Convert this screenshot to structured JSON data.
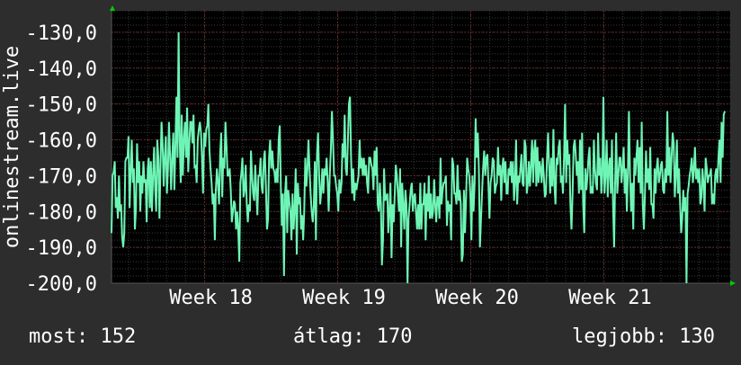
{
  "colors": {
    "background": "#2d2d2d",
    "plot_background": "#000000",
    "grid_major": "#6a2424",
    "grid_minor": "#3a3a3a",
    "line": "#6ef5b5",
    "text": "#ffffff",
    "arrow": "#00cc00"
  },
  "chart_data": {
    "type": "line",
    "title": "",
    "xlabel": "",
    "ylabel": "onlinestream.live",
    "ylim": [
      -200,
      -124
    ],
    "yticks": [
      -200,
      -190,
      -180,
      -170,
      -160,
      -150,
      -140,
      -130
    ],
    "ytick_labels": [
      "-200,0",
      "-190,0",
      "-180,0",
      "-170,0",
      "-160,0",
      "-150,0",
      "-140,0",
      "-130,0"
    ],
    "xlim": [
      17.3,
      21.95
    ],
    "xticks": [
      18,
      19,
      20,
      21
    ],
    "xtick_labels": [
      "Week 18",
      "Week 19",
      "Week 20",
      "Week 21"
    ],
    "grid": true,
    "series": [
      {
        "values": [
          -186,
          -170,
          -169,
          -166,
          -179,
          -176,
          -182,
          -170,
          -180,
          -178,
          -187,
          -190,
          -186,
          -166,
          -165,
          -165,
          -159,
          -179,
          -169,
          -160,
          -172,
          -168,
          -185,
          -179,
          -161,
          -172,
          -166,
          -180,
          -170,
          -175,
          -166,
          -172,
          -171,
          -183,
          -168,
          -165,
          -179,
          -166,
          -180,
          -170,
          -162,
          -173,
          -180,
          -160,
          -165,
          -182,
          -167,
          -155,
          -161,
          -173,
          -165,
          -159,
          -175,
          -168,
          -155,
          -164,
          -174,
          -165,
          -158,
          -174,
          -162,
          -148,
          -165,
          -130,
          -160,
          -172,
          -153,
          -170,
          -160,
          -155,
          -165,
          -151,
          -169,
          -162,
          -155,
          -155,
          -161,
          -153,
          -168,
          -167,
          -172,
          -160,
          -157,
          -155,
          -158,
          -165,
          -175,
          -158,
          -162,
          -157,
          -156,
          -150,
          -163,
          -168,
          -172,
          -178,
          -175,
          -188,
          -174,
          -168,
          -172,
          -178,
          -164,
          -158,
          -176,
          -165,
          -168,
          -155,
          -162,
          -170,
          -170,
          -168,
          -174,
          -183,
          -180,
          -177,
          -178,
          -185,
          -180,
          -185,
          -194,
          -172,
          -169,
          -165,
          -176,
          -174,
          -167,
          -178,
          -183,
          -178,
          -180,
          -163,
          -170,
          -175,
          -177,
          -167,
          -174,
          -181,
          -170,
          -170,
          -165,
          -173,
          -175,
          -166,
          -163,
          -173,
          -185,
          -182,
          -165,
          -160,
          -168,
          -163,
          -168,
          -169,
          -172,
          -168,
          -172,
          -160,
          -156,
          -173,
          -184,
          -175,
          -198,
          -175,
          -170,
          -186,
          -174,
          -177,
          -180,
          -188,
          -175,
          -185,
          -179,
          -168,
          -192,
          -172,
          -178,
          -176,
          -185,
          -181,
          -188,
          -180,
          -165,
          -173,
          -168,
          -160,
          -168,
          -175,
          -180,
          -183,
          -178,
          -166,
          -188,
          -164,
          -158,
          -170,
          -178,
          -174,
          -168,
          -175,
          -168,
          -170,
          -165,
          -172,
          -180,
          -170,
          -163,
          -152,
          -160,
          -170,
          -170,
          -173,
          -175,
          -180,
          -171,
          -175,
          -172,
          -161,
          -165,
          -153,
          -168,
          -170,
          -160,
          -150,
          -148,
          -165,
          -175,
          -168,
          -177,
          -172,
          -174,
          -172,
          -170,
          -160,
          -168,
          -165,
          -170,
          -165,
          -170,
          -167,
          -172,
          -175,
          -165,
          -165,
          -167,
          -168,
          -174,
          -163,
          -170,
          -162,
          -178,
          -180,
          -172,
          -178,
          -195,
          -188,
          -168,
          -177,
          -176,
          -175,
          -186,
          -180,
          -172,
          -193,
          -178,
          -183,
          -175,
          -167,
          -170,
          -175,
          -180,
          -168,
          -190,
          -172,
          -178,
          -185,
          -174,
          -178,
          -200,
          -182,
          -178,
          -174,
          -172,
          -180,
          -176,
          -175,
          -180,
          -185,
          -178,
          -185,
          -172,
          -185,
          -178,
          -178,
          -172,
          -188,
          -175,
          -180,
          -170,
          -182,
          -175,
          -182,
          -180,
          -171,
          -178,
          -183,
          -176,
          -176,
          -182,
          -165,
          -178,
          -174,
          -172,
          -172,
          -170,
          -184,
          -177,
          -180,
          -178,
          -188,
          -165,
          -167,
          -175,
          -175,
          -178,
          -167,
          -177,
          -174,
          -178,
          -194,
          -192,
          -174,
          -186,
          -176,
          -165,
          -168,
          -170,
          -175,
          -188,
          -170,
          -180,
          -172,
          -154,
          -165,
          -158,
          -168,
          -190,
          -182,
          -175,
          -168,
          -163,
          -170,
          -165,
          -164,
          -172,
          -182,
          -172,
          -170,
          -165,
          -166,
          -175,
          -173,
          -172,
          -162,
          -170,
          -167,
          -177,
          -168,
          -165,
          -172,
          -166,
          -175,
          -175,
          -168,
          -170,
          -166,
          -172,
          -166,
          -177,
          -172,
          -160,
          -178,
          -170,
          -172,
          -168,
          -164,
          -172,
          -173,
          -160,
          -162,
          -175,
          -172,
          -166,
          -173,
          -167,
          -160,
          -172,
          -163,
          -160,
          -173,
          -162,
          -172,
          -166,
          -168,
          -172,
          -165,
          -170,
          -176,
          -175,
          -165,
          -158,
          -167,
          -175,
          -165,
          -173,
          -157,
          -173,
          -178,
          -165,
          -167,
          -162,
          -160,
          -172,
          -170,
          -175,
          -165,
          -150,
          -172,
          -160,
          -167,
          -164,
          -178,
          -185,
          -175,
          -162,
          -160,
          -164,
          -170,
          -166,
          -175,
          -160,
          -174,
          -158,
          -178,
          -186,
          -168,
          -174,
          -170,
          -165,
          -162,
          -175,
          -173,
          -175,
          -160,
          -168,
          -172,
          -174,
          -158,
          -170,
          -165,
          -175,
          -170,
          -148,
          -175,
          -170,
          -160,
          -176,
          -168,
          -165,
          -175,
          -160,
          -178,
          -190,
          -172,
          -158,
          -175,
          -170,
          -165,
          -165,
          -172,
          -168,
          -162,
          -175,
          -168,
          -180,
          -168,
          -152,
          -170,
          -180,
          -172,
          -185,
          -165,
          -170,
          -165,
          -160,
          -172,
          -162,
          -175,
          -155,
          -178,
          -185,
          -175,
          -163,
          -172,
          -168,
          -174,
          -162,
          -178,
          -178,
          -182,
          -168,
          -175,
          -168,
          -165,
          -172,
          -170,
          -167,
          -166,
          -174,
          -175,
          -168,
          -172,
          -152,
          -170,
          -162,
          -172,
          -165,
          -158,
          -161,
          -176,
          -170,
          -160,
          -175,
          -168,
          -178,
          -186,
          -182,
          -174,
          -180,
          -176,
          -201,
          -175,
          -173,
          -170,
          -168,
          -165,
          -172,
          -168,
          -162,
          -171,
          -168,
          -172,
          -168,
          -178,
          -176,
          -168,
          -172,
          -180,
          -165,
          -168,
          -172,
          -170,
          -170,
          -168,
          -178,
          -175,
          -178,
          -170,
          -168,
          -172,
          -165,
          -160,
          -172,
          -155,
          -165,
          -153,
          -152
        ]
      }
    ],
    "legend_text": {
      "current": "most: 152",
      "average": "átlag: 170",
      "best": "legjobb: 130"
    }
  }
}
